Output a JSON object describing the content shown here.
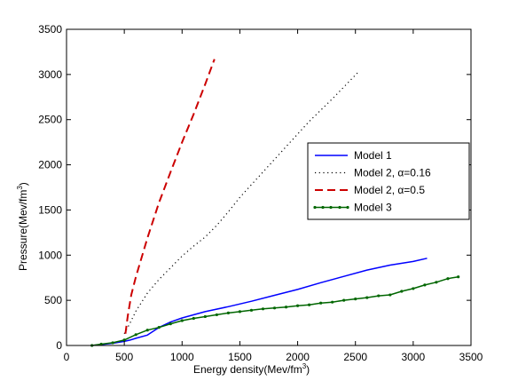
{
  "chart_data": {
    "type": "line",
    "xlabel": "Energy density(Mev/fm",
    "xlabel_sup": "3",
    "xlabel_end": ")",
    "ylabel": "Pressure(Mev/fm",
    "ylabel_sup": "3",
    "ylabel_end": ")",
    "xlim": [
      0,
      3500
    ],
    "ylim": [
      0,
      3500
    ],
    "xticks": [
      0,
      500,
      1000,
      1500,
      2000,
      2500,
      3000,
      3500
    ],
    "yticks": [
      0,
      500,
      1000,
      1500,
      2000,
      2500,
      3000,
      3500
    ],
    "xtick_labels": [
      "0",
      "500",
      "1000",
      "1500",
      "2000",
      "2500",
      "3000",
      "3500"
    ],
    "ytick_labels": [
      "0",
      "500",
      "1000",
      "1500",
      "2000",
      "2500",
      "3000",
      "3500"
    ],
    "grid": false,
    "legend_position": "right",
    "series": [
      {
        "name": "Model 1",
        "color": "#0000ff",
        "style": "solid",
        "x": [
          220,
          300,
          400,
          500,
          550,
          600,
          700,
          800,
          900,
          1000,
          1200,
          1400,
          1600,
          1800,
          2000,
          2200,
          2400,
          2600,
          2800,
          3000,
          3120
        ],
        "y": [
          0,
          10,
          25,
          45,
          60,
          80,
          115,
          200,
          260,
          305,
          375,
          430,
          490,
          555,
          620,
          695,
          765,
          835,
          890,
          930,
          965
        ]
      },
      {
        "name": "Model 2, α=0.16",
        "color": "#000000",
        "style": "dotted",
        "x": [
          500,
          550,
          600,
          700,
          800,
          900,
          1000,
          1100,
          1200,
          1300,
          1400,
          1500,
          1700,
          1900,
          2100,
          2300,
          2520
        ],
        "y": [
          130,
          250,
          380,
          580,
          730,
          860,
          990,
          1100,
          1200,
          1330,
          1480,
          1640,
          1920,
          2200,
          2480,
          2730,
          3020
        ]
      },
      {
        "name": "Model 2, α=0.5",
        "color": "#cc0000",
        "style": "dashed",
        "x": [
          510,
          530,
          560,
          600,
          700,
          800,
          900,
          1000,
          1100,
          1200,
          1280
        ],
        "y": [
          130,
          330,
          560,
          760,
          1190,
          1580,
          1920,
          2250,
          2560,
          2890,
          3170
        ]
      },
      {
        "name": "Model 3",
        "color": "#006600",
        "style": "solid-marker",
        "x": [
          220,
          300,
          400,
          500,
          600,
          700,
          800,
          900,
          1000,
          1100,
          1200,
          1300,
          1400,
          1500,
          1600,
          1700,
          1800,
          1900,
          2000,
          2100,
          2200,
          2300,
          2400,
          2500,
          2600,
          2700,
          2800,
          2900,
          3000,
          3100,
          3200,
          3300,
          3390
        ],
        "y": [
          0,
          15,
          30,
          60,
          120,
          170,
          200,
          240,
          275,
          300,
          320,
          340,
          360,
          375,
          390,
          405,
          415,
          425,
          440,
          450,
          470,
          480,
          500,
          515,
          530,
          550,
          560,
          600,
          630,
          670,
          700,
          740,
          760
        ]
      }
    ]
  }
}
